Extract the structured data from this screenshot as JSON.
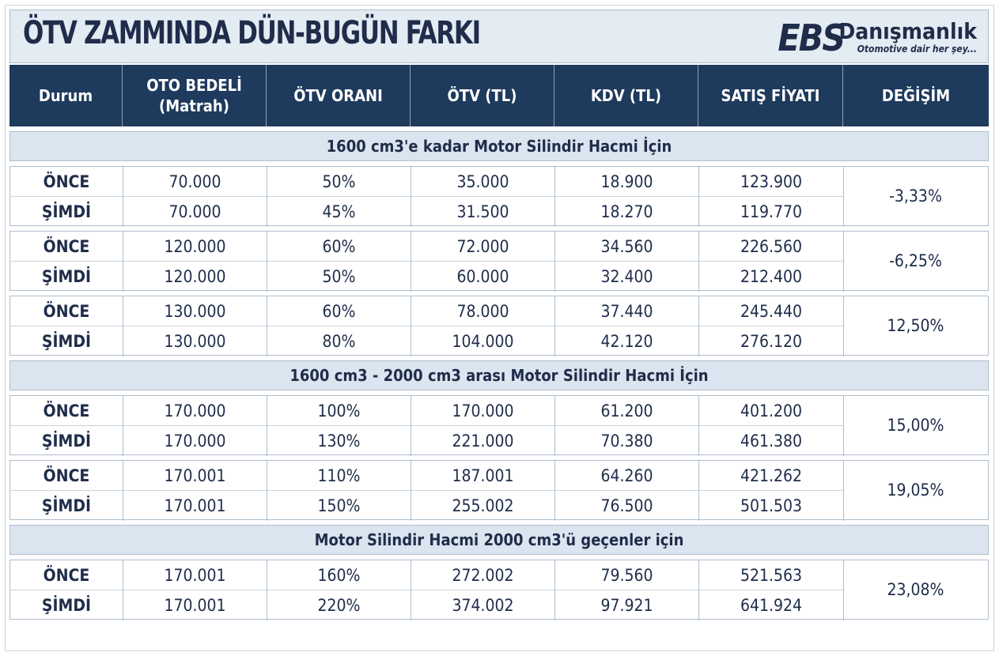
{
  "title": "ÖTV ZAMMINDA DÜN-BUGÜN FARKI",
  "logo": {
    "mark": "EBS",
    "name": "Danışmanlık",
    "tagline": "Otomotive dair her şey..."
  },
  "columns": [
    "Durum",
    "OTO BEDELİ",
    "(Matrah)",
    "ÖTV ORANI",
    "ÖTV (TL)",
    "KDV (TL)",
    "SATIŞ FİYATI",
    "DEĞİŞİM"
  ],
  "sections": [
    {
      "label": "1600 cm3'e kadar Motor Silindir Hacmi İçin",
      "groups": [
        {
          "rows": [
            [
              "ÖNCE",
              "70.000",
              "50%",
              "35.000",
              "18.900",
              "123.900"
            ],
            [
              "ŞİMDİ",
              "70.000",
              "45%",
              "31.500",
              "18.270",
              "119.770"
            ]
          ],
          "change": "-3,33%"
        },
        {
          "rows": [
            [
              "ÖNCE",
              "120.000",
              "60%",
              "72.000",
              "34.560",
              "226.560"
            ],
            [
              "ŞİMDİ",
              "120.000",
              "50%",
              "60.000",
              "32.400",
              "212.400"
            ]
          ],
          "change": "-6,25%"
        },
        {
          "rows": [
            [
              "ÖNCE",
              "130.000",
              "60%",
              "78.000",
              "37.440",
              "245.440"
            ],
            [
              "ŞİMDİ",
              "130.000",
              "80%",
              "104.000",
              "42.120",
              "276.120"
            ]
          ],
          "change": "12,50%"
        }
      ]
    },
    {
      "label": "1600 cm3 - 2000 cm3 arası Motor Silindir Hacmi İçin",
      "groups": [
        {
          "rows": [
            [
              "ÖNCE",
              "170.000",
              "100%",
              "170.000",
              "61.200",
              "401.200"
            ],
            [
              "ŞİMDİ",
              "170.000",
              "130%",
              "221.000",
              "70.380",
              "461.380"
            ]
          ],
          "change": "15,00%"
        },
        {
          "rows": [
            [
              "ÖNCE",
              "170.001",
              "110%",
              "187.001",
              "64.260",
              "421.262"
            ],
            [
              "ŞİMDİ",
              "170.001",
              "150%",
              "255.002",
              "76.500",
              "501.503"
            ]
          ],
          "change": "19,05%"
        }
      ]
    },
    {
      "label": "Motor Silindir Hacmi 2000 cm3'ü geçenler için",
      "groups": [
        {
          "rows": [
            [
              "ÖNCE",
              "170.001",
              "160%",
              "272.002",
              "79.560",
              "521.563"
            ],
            [
              "ŞİMDİ",
              "170.001",
              "220%",
              "374.002",
              "97.921",
              "641.924"
            ]
          ],
          "change": "23,08%"
        }
      ]
    }
  ]
}
